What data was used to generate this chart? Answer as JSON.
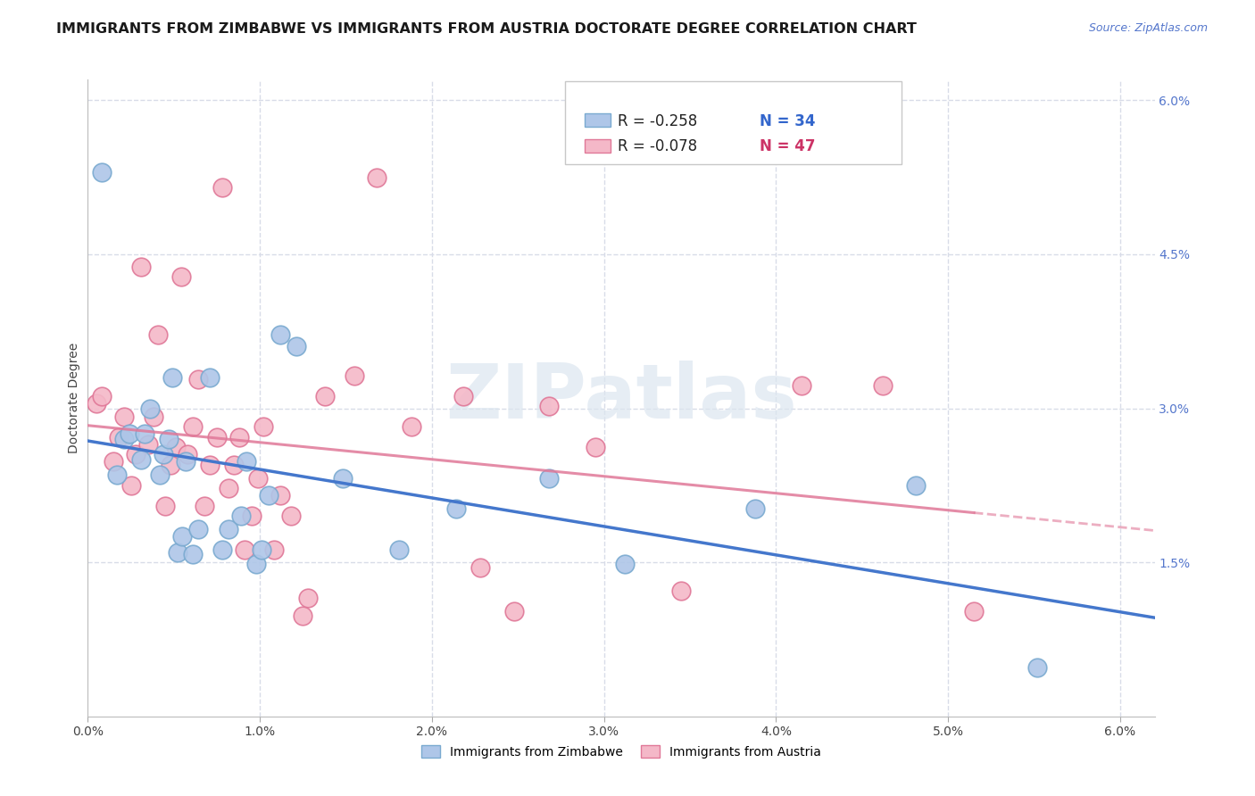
{
  "title": "IMMIGRANTS FROM ZIMBABWE VS IMMIGRANTS FROM AUSTRIA DOCTORATE DEGREE CORRELATION CHART",
  "source": "Source: ZipAtlas.com",
  "ylabel": "Doctorate Degree",
  "xlim": [
    0.0,
    0.062
  ],
  "ylim": [
    0.0,
    0.062
  ],
  "zimbabwe_color": "#aec6e8",
  "austria_color": "#f4b8c8",
  "zimbabwe_edge": "#7aaad0",
  "austria_edge": "#e07898",
  "trendline_zimbabwe_color": "#4477cc",
  "trendline_austria_color": "#e07898",
  "legend_r_zimbabwe": "R = -0.258",
  "legend_n_zimbabwe": "N = 34",
  "legend_r_austria": "R = -0.078",
  "legend_n_austria": "N = 47",
  "watermark": "ZIPatlas",
  "zimbabwe_x": [
    0.0008,
    0.0017,
    0.0021,
    0.0024,
    0.0031,
    0.0033,
    0.0036,
    0.0042,
    0.0044,
    0.0047,
    0.0049,
    0.0052,
    0.0055,
    0.0057,
    0.0061,
    0.0064,
    0.0071,
    0.0078,
    0.0082,
    0.0089,
    0.0092,
    0.0098,
    0.0101,
    0.0105,
    0.0112,
    0.0121,
    0.0148,
    0.0181,
    0.0214,
    0.0268,
    0.0312,
    0.0388,
    0.0481,
    0.0552
  ],
  "zimbabwe_y": [
    0.053,
    0.0235,
    0.027,
    0.0275,
    0.025,
    0.0275,
    0.03,
    0.0235,
    0.0255,
    0.027,
    0.033,
    0.016,
    0.0175,
    0.0248,
    0.0158,
    0.0182,
    0.033,
    0.0162,
    0.0182,
    0.0195,
    0.0248,
    0.0148,
    0.0162,
    0.0215,
    0.0372,
    0.036,
    0.0232,
    0.0162,
    0.0202,
    0.0232,
    0.0148,
    0.0202,
    0.0225,
    0.0048
  ],
  "austria_x": [
    0.0005,
    0.0008,
    0.0015,
    0.0018,
    0.0021,
    0.0025,
    0.0028,
    0.0031,
    0.0035,
    0.0038,
    0.0041,
    0.0045,
    0.0048,
    0.0051,
    0.0054,
    0.0058,
    0.0061,
    0.0064,
    0.0068,
    0.0071,
    0.0075,
    0.0078,
    0.0082,
    0.0085,
    0.0088,
    0.0091,
    0.0095,
    0.0099,
    0.0102,
    0.0108,
    0.0112,
    0.0118,
    0.0125,
    0.0128,
    0.0138,
    0.0155,
    0.0168,
    0.0188,
    0.0218,
    0.0228,
    0.0248,
    0.0268,
    0.0295,
    0.0345,
    0.0415,
    0.0462,
    0.0515
  ],
  "austria_y": [
    0.0305,
    0.0312,
    0.0248,
    0.0272,
    0.0292,
    0.0225,
    0.0255,
    0.0438,
    0.0265,
    0.0292,
    0.0372,
    0.0205,
    0.0245,
    0.0262,
    0.0428,
    0.0255,
    0.0282,
    0.0328,
    0.0205,
    0.0245,
    0.0272,
    0.0515,
    0.0222,
    0.0245,
    0.0272,
    0.0162,
    0.0195,
    0.0232,
    0.0282,
    0.0162,
    0.0215,
    0.0195,
    0.0098,
    0.0115,
    0.0312,
    0.0332,
    0.0525,
    0.0282,
    0.0312,
    0.0145,
    0.0102,
    0.0302,
    0.0262,
    0.0122,
    0.0322,
    0.0322,
    0.0102
  ],
  "grid_color": "#d8dce8",
  "background_color": "#ffffff",
  "title_fontsize": 11.5,
  "axis_label_fontsize": 10,
  "tick_fontsize": 10,
  "legend_fontsize": 12,
  "right_tick_color": "#5577cc"
}
